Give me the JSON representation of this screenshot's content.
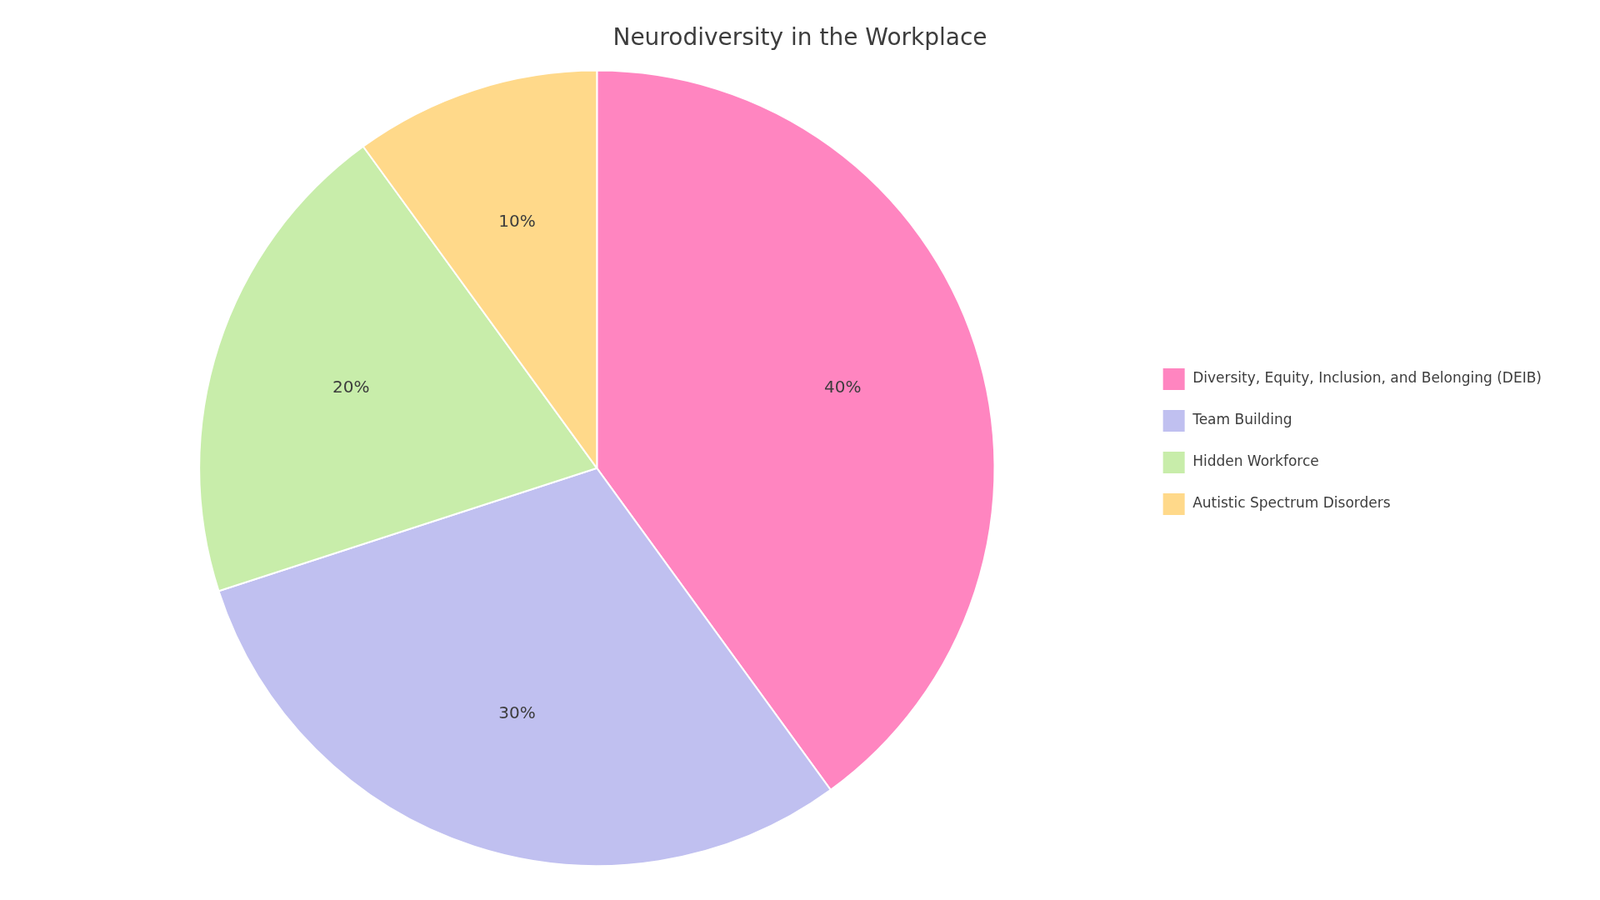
{
  "chart_data": {
    "type": "pie",
    "title": "Neurodiversity in the Workplace",
    "categories": [
      "Diversity, Equity, Inclusion, and Belonging (DEIB)",
      "Team Building",
      "Hidden Workforce",
      "Autistic Spectrum Disorders"
    ],
    "values": [
      40,
      30,
      20,
      10
    ],
    "value_labels": [
      "40%",
      "30%",
      "20%",
      "10%"
    ],
    "colors": [
      "#FF85C0",
      "#C0C0F0",
      "#C8EDAA",
      "#FFD98A"
    ],
    "data_labels": true,
    "legend": "right"
  }
}
